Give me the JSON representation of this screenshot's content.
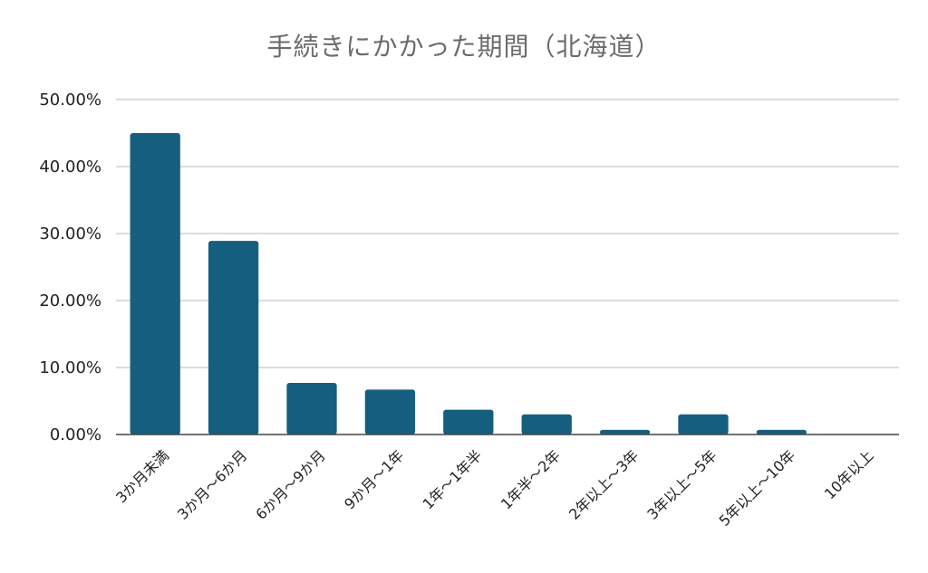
{
  "chart_data": {
    "type": "bar",
    "title": "手続きにかかった期間（北海道）",
    "xlabel": "",
    "ylabel": "",
    "categories": [
      "3か月未満",
      "3か月～6か月",
      "6か月～9か月",
      "9か月～1年",
      "1年～1年半",
      "1年半～2年",
      "2年以上～3年",
      "3年以上～5年",
      "5年以上～10年",
      "10年以上"
    ],
    "values": [
      45.0,
      28.9,
      7.7,
      6.7,
      3.7,
      3.0,
      0.7,
      3.0,
      0.7,
      0.0
    ],
    "ylim": [
      0,
      50
    ],
    "yticks": [
      0,
      10,
      20,
      30,
      40,
      50
    ],
    "ytick_labels": [
      "0.00%",
      "10.00%",
      "20.00%",
      "30.00%",
      "40.00%",
      "50.00%"
    ],
    "grid": true,
    "legend": "none",
    "bar_color": "#165e80",
    "grid_color": "#d0d0d0",
    "axis_color": "#444444"
  }
}
